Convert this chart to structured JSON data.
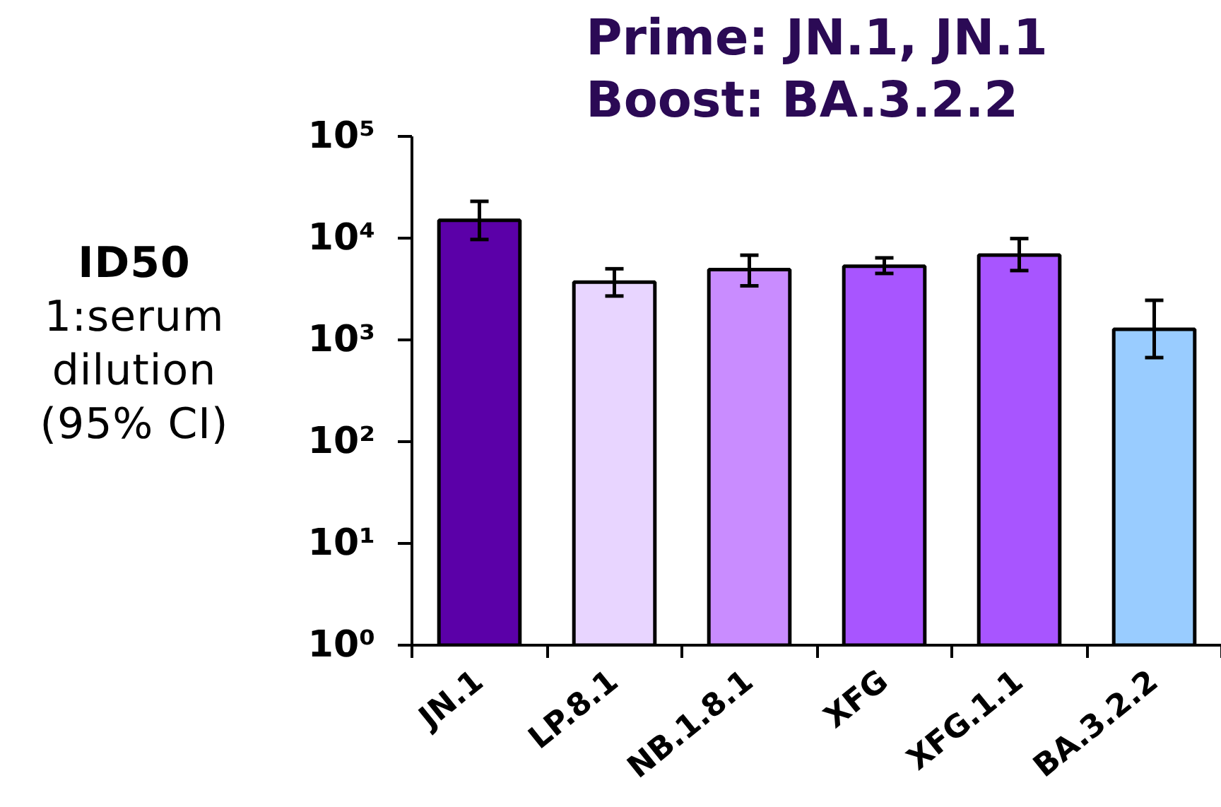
{
  "chart_data": {
    "type": "bar",
    "title": "Prime: JN.1, JN.1\nBoost: BA.3.2.2",
    "ylabel": "ID50\n1:serum\ndilution\n(95% CI)",
    "categories": [
      "JN.1",
      "LP.8.1",
      "NB.1.8.1",
      "XFG",
      "XFG.1.1",
      "BA.3.2.2"
    ],
    "values": [
      15000,
      3700,
      4900,
      5300,
      6800,
      1270
    ],
    "colors": [
      "#5b00a8",
      "#e8d5ff",
      "#c98cff",
      "#a855ff",
      "#a855ff",
      "#99ccff"
    ],
    "errors": [
      [
        9700,
        23000
      ],
      [
        2700,
        5000
      ],
      [
        3400,
        6800
      ],
      [
        4500,
        6400
      ],
      [
        4800,
        9900
      ],
      [
        670,
        2450
      ]
    ],
    "log": true,
    "ylim": [
      1,
      100000
    ],
    "yticks": [
      {
        "value": 1,
        "label": "10⁰"
      },
      {
        "value": 10,
        "label": "10¹"
      },
      {
        "value": 100,
        "label": "10²"
      },
      {
        "value": 1000,
        "label": "10³"
      },
      {
        "value": 10000,
        "label": "10⁴"
      },
      {
        "value": 100000,
        "label": "10⁵"
      }
    ],
    "grid": false
  }
}
